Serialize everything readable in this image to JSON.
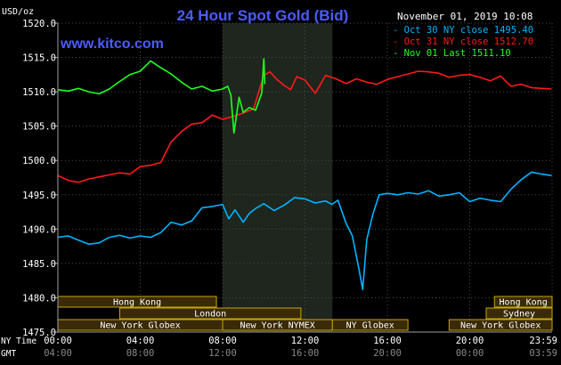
{
  "chart_data": {
    "type": "line",
    "title": "24 Hour Spot Gold (Bid)",
    "watermark": "www.kitco.com",
    "timestamp": "November 01, 2019 10:08",
    "y_unit_label": "USD/oz",
    "ylim": [
      1475.0,
      1520.0
    ],
    "y_ticks": [
      "1520.0",
      "1515.0",
      "1510.0",
      "1505.0",
      "1500.0",
      "1495.0",
      "1490.0",
      "1485.0",
      "1480.0",
      "1475.0"
    ],
    "xlim": [
      0,
      24
    ],
    "x_row_label": "NY Time",
    "x_ticks_ny": [
      "00:00",
      "04:00",
      "08:00",
      "12:00",
      "16:00",
      "20:00",
      "23:59"
    ],
    "x_row2_label": "GMT",
    "x_ticks_gmt": [
      "04:00",
      "08:00",
      "12:00",
      "16:00",
      "20:00",
      "00:00",
      "03:59"
    ],
    "grid": true,
    "legend_position": "top-right",
    "colors": {
      "background": "#000000",
      "plot_bg": "#000000",
      "shaded_session": "#1e261e",
      "grid": "#4a4a4a",
      "axis": "#a0a0a0",
      "title": "#4a5cff",
      "watermark": "#4a5cff",
      "text": "#ffffff",
      "session_fill": "#3a2a08",
      "session_border": "#c8a800"
    },
    "shaded_region": [
      8.0,
      13.33
    ],
    "series": [
      {
        "name": "Oct 30 NY close 1495.40",
        "color": "#00b4ff",
        "x": [
          0,
          0.5,
          1,
          1.5,
          2,
          2.5,
          3,
          3.5,
          4,
          4.5,
          5,
          5.5,
          6,
          6.5,
          7,
          7.5,
          8,
          8.3,
          8.6,
          9,
          9.3,
          9.6,
          10,
          10.5,
          11,
          11.5,
          12,
          12.5,
          13,
          13.3,
          13.6,
          14,
          14.3,
          14.6,
          14.8,
          15,
          15.3,
          15.6,
          16,
          16.5,
          17,
          17.5,
          18,
          18.5,
          19,
          19.5,
          20,
          20.5,
          21,
          21.5,
          22,
          22.5,
          23,
          23.5,
          23.98
        ],
        "values": [
          1488.8,
          1489.0,
          1488.4,
          1487.8,
          1488.0,
          1488.8,
          1489.1,
          1488.7,
          1489.0,
          1488.8,
          1489.5,
          1491.0,
          1490.6,
          1491.2,
          1493.1,
          1493.3,
          1493.6,
          1491.5,
          1492.8,
          1491.0,
          1492.3,
          1493.0,
          1493.7,
          1492.7,
          1493.5,
          1494.6,
          1494.4,
          1493.8,
          1494.1,
          1493.6,
          1494.2,
          1490.8,
          1489.0,
          1484.5,
          1481.2,
          1488.5,
          1492.2,
          1495.0,
          1495.2,
          1495.0,
          1495.3,
          1495.1,
          1495.6,
          1494.8,
          1495.0,
          1495.3,
          1494.0,
          1494.5,
          1494.2,
          1494.0,
          1495.8,
          1497.2,
          1498.3,
          1498.0,
          1497.8
        ]
      },
      {
        "name": "Oct 31 NY close 1512.70",
        "color": "#ff1a1a",
        "x": [
          0,
          0.5,
          1,
          1.5,
          2,
          2.5,
          3,
          3.5,
          4,
          4.5,
          5,
          5.5,
          6,
          6.5,
          7,
          7.5,
          8,
          8.5,
          9,
          9.5,
          10,
          10.3,
          10.6,
          11,
          11.3,
          11.6,
          12,
          12.5,
          13,
          13.5,
          14,
          14.5,
          15,
          15.5,
          16,
          16.5,
          17,
          17.5,
          18,
          18.5,
          19,
          19.5,
          20,
          20.5,
          21,
          21.5,
          22,
          22.5,
          23,
          23.5,
          23.98
        ],
        "values": [
          1497.8,
          1497.1,
          1496.8,
          1497.3,
          1497.6,
          1497.9,
          1498.2,
          1498.0,
          1499.1,
          1499.3,
          1499.7,
          1502.7,
          1504.2,
          1505.3,
          1505.5,
          1506.6,
          1506.0,
          1506.4,
          1506.9,
          1507.5,
          1512.4,
          1512.9,
          1511.9,
          1510.9,
          1510.3,
          1512.2,
          1511.7,
          1509.8,
          1512.4,
          1511.9,
          1511.2,
          1511.9,
          1511.4,
          1511.1,
          1511.8,
          1512.2,
          1512.6,
          1513.0,
          1512.9,
          1512.7,
          1512.1,
          1512.4,
          1512.5,
          1512.1,
          1511.6,
          1512.3,
          1510.8,
          1511.1,
          1510.6,
          1510.5,
          1510.4
        ]
      },
      {
        "name": "Nov 01 Last 1511.10",
        "color": "#1eff1e",
        "x": [
          0,
          0.5,
          1,
          1.5,
          2,
          2.5,
          3,
          3.5,
          4,
          4.5,
          5,
          5.5,
          6,
          6.5,
          7,
          7.5,
          8,
          8.25,
          8.4,
          8.55,
          8.8,
          9,
          9.3,
          9.6,
          9.9,
          10,
          10.05
        ],
        "values": [
          1510.3,
          1510.1,
          1510.5,
          1510.0,
          1509.7,
          1510.4,
          1511.5,
          1512.5,
          1513.0,
          1514.5,
          1513.5,
          1512.6,
          1511.4,
          1510.4,
          1510.8,
          1510.1,
          1510.4,
          1510.8,
          1509.5,
          1504.0,
          1509.2,
          1507.0,
          1507.7,
          1507.3,
          1509.8,
          1514.8,
          1511.1
        ]
      }
    ],
    "session_rows": [
      [
        {
          "label": "Hong Kong",
          "start": 0.0,
          "end": 7.7
        },
        {
          "label": "Hong Kong",
          "start": 21.2,
          "end": 24.0
        }
      ],
      [
        {
          "label": "London",
          "start": 3.0,
          "end": 11.8
        },
        {
          "label": "Sydney",
          "start": 20.8,
          "end": 24.0
        }
      ],
      [
        {
          "label": "New York Globex",
          "start": 0.0,
          "end": 8.0
        },
        {
          "label": "New York NYMEX",
          "start": 8.0,
          "end": 13.33
        },
        {
          "label": "NY Globex",
          "start": 13.33,
          "end": 17.0
        },
        {
          "label": "New York Globex",
          "start": 19.0,
          "end": 24.0
        }
      ]
    ]
  }
}
